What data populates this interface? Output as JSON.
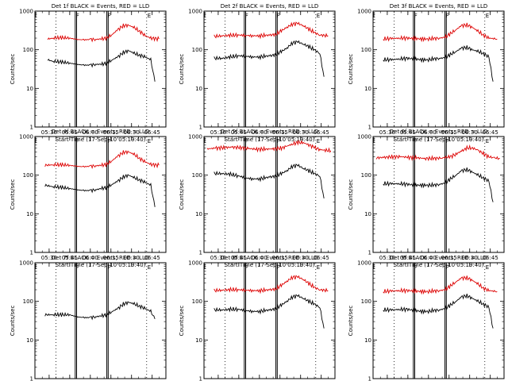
{
  "colors": {
    "events": "#000000",
    "lld": "#dd0000",
    "background": "#ffffff"
  },
  "chart_data": [
    {
      "type": "line",
      "title": "Det 1f BLACK = Events, RED = LLD",
      "xlabel": "Start Time (17-Sep-10 05:19:40)",
      "ylabel": "Counts/sec",
      "yscale": "log",
      "ylim": [
        1,
        1000
      ],
      "yticks": [
        "1",
        "10",
        "100",
        "1000"
      ],
      "xticks": [
        "05:30",
        "05:45",
        "06:00",
        "06:15",
        "06:30",
        "06:45"
      ],
      "markers": [
        "F",
        "F",
        "E"
      ],
      "grid": false,
      "series": [
        {
          "name": "Events",
          "color": "#000000",
          "x": [
            "05:29",
            "05:33",
            "05:39",
            "05:45",
            "05:50",
            "05:55",
            "06:00",
            "06:04",
            "06:08",
            "06:12",
            "06:16",
            "06:20",
            "06:24",
            "06:28",
            "06:32",
            "06:36",
            "06:40",
            "06:44",
            "06:47"
          ],
          "y": [
            55,
            50,
            48,
            45,
            42,
            40,
            40,
            42,
            42,
            45,
            55,
            65,
            85,
            95,
            80,
            72,
            65,
            55,
            15
          ]
        },
        {
          "name": "LLD",
          "color": "#dd0000",
          "x": [
            "05:29",
            "05:33",
            "05:39",
            "05:45",
            "05:50",
            "05:55",
            "06:00",
            "06:04",
            "06:08",
            "06:12",
            "06:16",
            "06:20",
            "06:24",
            "06:28",
            "06:32",
            "06:36",
            "06:40",
            "06:44",
            "06:50"
          ],
          "y": [
            190,
            200,
            205,
            200,
            185,
            180,
            185,
            185,
            190,
            200,
            250,
            330,
            420,
            430,
            370,
            300,
            230,
            200,
            190
          ]
        }
      ]
    },
    {
      "type": "line",
      "title": "Det 2f BLACK = Events, RED = LLD",
      "xlabel": "Start Time (17-Sep-10 05:19:40)",
      "ylabel": "Counts/sec",
      "yscale": "log",
      "ylim": [
        1,
        1000
      ],
      "yticks": [
        "1",
        "10",
        "100",
        "1000"
      ],
      "xticks": [
        "05:30",
        "05:45",
        "06:00",
        "06:15",
        "06:30",
        "06:45"
      ],
      "markers": [
        "F",
        "F",
        "E"
      ],
      "grid": false,
      "series": [
        {
          "name": "Events",
          "color": "#000000",
          "x": [
            "05:27",
            "05:33",
            "05:39",
            "05:45",
            "05:50",
            "05:55",
            "06:00",
            "06:04",
            "06:08",
            "06:12",
            "06:16",
            "06:20",
            "06:24",
            "06:28",
            "06:32",
            "06:36",
            "06:40",
            "06:44",
            "06:47"
          ],
          "y": [
            60,
            60,
            65,
            70,
            68,
            65,
            65,
            68,
            70,
            75,
            90,
            110,
            150,
            160,
            140,
            120,
            100,
            80,
            20
          ]
        },
        {
          "name": "LLD",
          "color": "#dd0000",
          "x": [
            "05:27",
            "05:33",
            "05:39",
            "05:45",
            "05:50",
            "05:55",
            "06:00",
            "06:04",
            "06:08",
            "06:12",
            "06:16",
            "06:20",
            "06:24",
            "06:28",
            "06:32",
            "06:36",
            "06:40",
            "06:44",
            "06:50"
          ],
          "y": [
            220,
            230,
            235,
            240,
            235,
            230,
            230,
            235,
            240,
            250,
            310,
            380,
            460,
            480,
            420,
            340,
            280,
            240,
            230
          ]
        }
      ]
    },
    {
      "type": "line",
      "title": "Det 3f BLACK = Events, RED = LLD",
      "xlabel": "Start Time (17-Sep-10 05:19:40)",
      "ylabel": "Counts/sec",
      "yscale": "log",
      "ylim": [
        1,
        1000
      ],
      "yticks": [
        "1",
        "10",
        "100",
        "1000"
      ],
      "xticks": [
        "05:30",
        "05:45",
        "06:00",
        "06:15",
        "06:30",
        "06:45"
      ],
      "markers": [
        "F",
        "F",
        "E"
      ],
      "grid": false,
      "series": [
        {
          "name": "Events",
          "color": "#000000",
          "x": [
            "05:27",
            "05:33",
            "05:39",
            "05:45",
            "05:50",
            "05:55",
            "06:00",
            "06:04",
            "06:08",
            "06:12",
            "06:16",
            "06:20",
            "06:24",
            "06:28",
            "06:32",
            "06:36",
            "06:40",
            "06:44",
            "06:47"
          ],
          "y": [
            55,
            55,
            58,
            60,
            58,
            55,
            55,
            58,
            60,
            62,
            75,
            90,
            110,
            115,
            100,
            90,
            80,
            65,
            15
          ]
        },
        {
          "name": "LLD",
          "color": "#dd0000",
          "x": [
            "05:27",
            "05:33",
            "05:39",
            "05:45",
            "05:50",
            "05:55",
            "06:00",
            "06:04",
            "06:08",
            "06:12",
            "06:16",
            "06:20",
            "06:24",
            "06:28",
            "06:32",
            "06:36",
            "06:40",
            "06:44",
            "06:50"
          ],
          "y": [
            190,
            195,
            200,
            200,
            195,
            190,
            190,
            195,
            200,
            210,
            260,
            330,
            420,
            440,
            380,
            300,
            240,
            200,
            190
          ]
        }
      ]
    },
    {
      "type": "line",
      "title": "Det 4f BLACK = Events, RED = LLD",
      "xlabel": "Start Time (17-Sep-10 05:19:40)",
      "ylabel": "Counts/sec",
      "yscale": "log",
      "ylim": [
        1,
        1000
      ],
      "yticks": [
        "1",
        "10",
        "100",
        "1000"
      ],
      "xticks": [
        "05:30",
        "05:45",
        "06:00",
        "06:15",
        "06:30",
        "06:45"
      ],
      "markers": [
        "F",
        "F",
        "E"
      ],
      "grid": false,
      "series": [
        {
          "name": "Events",
          "color": "#000000",
          "x": [
            "05:27",
            "05:33",
            "05:39",
            "05:45",
            "05:50",
            "05:55",
            "06:00",
            "06:04",
            "06:08",
            "06:12",
            "06:16",
            "06:20",
            "06:24",
            "06:28",
            "06:32",
            "06:36",
            "06:40",
            "06:44",
            "06:47"
          ],
          "y": [
            55,
            50,
            48,
            45,
            42,
            40,
            40,
            42,
            45,
            48,
            58,
            70,
            90,
            100,
            85,
            75,
            65,
            55,
            15
          ]
        },
        {
          "name": "LLD",
          "color": "#dd0000",
          "x": [
            "05:27",
            "05:33",
            "05:39",
            "05:45",
            "05:50",
            "05:55",
            "06:00",
            "06:04",
            "06:08",
            "06:12",
            "06:16",
            "06:20",
            "06:24",
            "06:28",
            "06:32",
            "06:36",
            "06:40",
            "06:44",
            "06:50"
          ],
          "y": [
            180,
            185,
            185,
            180,
            170,
            165,
            170,
            175,
            180,
            190,
            240,
            310,
            390,
            400,
            340,
            270,
            220,
            190,
            180
          ]
        }
      ]
    },
    {
      "type": "line",
      "title": "Det 5f BLACK = Events, RED = LLD",
      "xlabel": "Start Time (17-Sep-10 05:19:40)",
      "ylabel": "Counts/sec",
      "yscale": "log",
      "ylim": [
        1,
        1000
      ],
      "yticks": [
        "1",
        "10",
        "100",
        "1000"
      ],
      "xticks": [
        "05:30",
        "05:45",
        "06:00",
        "06:15",
        "06:30",
        "06:45"
      ],
      "markers": [
        "F",
        "F",
        "E"
      ],
      "grid": false,
      "series": [
        {
          "name": "Events",
          "color": "#000000",
          "x": [
            "05:27",
            "05:33",
            "05:39",
            "05:45",
            "05:50",
            "05:55",
            "06:00",
            "06:04",
            "06:08",
            "06:12",
            "06:16",
            "06:20",
            "06:24",
            "06:28",
            "06:32",
            "06:36",
            "06:40",
            "06:44",
            "06:47"
          ],
          "y": [
            110,
            110,
            105,
            95,
            85,
            80,
            80,
            85,
            90,
            95,
            110,
            130,
            170,
            180,
            150,
            130,
            110,
            95,
            25
          ]
        },
        {
          "name": "LLD",
          "color": "#dd0000",
          "x": [
            "05:22",
            "05:28",
            "05:34",
            "05:40",
            "05:46",
            "05:52",
            "05:58",
            "06:04",
            "06:10",
            "06:16",
            "06:20",
            "06:24",
            "06:28",
            "06:32",
            "06:36",
            "06:40",
            "06:44",
            "06:48",
            "06:52"
          ],
          "y": [
            480,
            500,
            520,
            530,
            520,
            490,
            470,
            470,
            480,
            500,
            560,
            640,
            700,
            690,
            610,
            520,
            460,
            440,
            430
          ]
        }
      ]
    },
    {
      "type": "line",
      "title": "Det 6f BLACK = Events, RED = LLD",
      "xlabel": "Start Time (17-Sep-10 05:19:40)",
      "ylabel": "Counts/sec",
      "yscale": "log",
      "ylim": [
        1,
        1000
      ],
      "yticks": [
        "1",
        "10",
        "100",
        "1000"
      ],
      "xticks": [
        "05:30",
        "05:45",
        "06:00",
        "06:15",
        "06:30",
        "06:45"
      ],
      "markers": [
        "F",
        "F",
        "E"
      ],
      "grid": false,
      "series": [
        {
          "name": "Events",
          "color": "#000000",
          "x": [
            "05:27",
            "05:33",
            "05:39",
            "05:45",
            "05:50",
            "05:55",
            "06:00",
            "06:04",
            "06:08",
            "06:12",
            "06:16",
            "06:20",
            "06:24",
            "06:28",
            "06:32",
            "06:36",
            "06:40",
            "06:44",
            "06:47"
          ],
          "y": [
            60,
            60,
            60,
            58,
            55,
            55,
            55,
            55,
            58,
            62,
            80,
            100,
            130,
            140,
            120,
            100,
            85,
            70,
            20
          ]
        },
        {
          "name": "LLD",
          "color": "#dd0000",
          "x": [
            "05:22",
            "05:28",
            "05:34",
            "05:40",
            "05:46",
            "05:52",
            "05:58",
            "06:04",
            "06:10",
            "06:16",
            "06:20",
            "06:24",
            "06:28",
            "06:32",
            "06:36",
            "06:40",
            "06:44",
            "06:48",
            "06:52"
          ],
          "y": [
            280,
            290,
            300,
            300,
            290,
            280,
            270,
            270,
            280,
            300,
            350,
            420,
            500,
            510,
            440,
            360,
            300,
            280,
            270
          ]
        }
      ]
    },
    {
      "type": "line",
      "title": "Det 7f BLACK = Events, RED = LLD",
      "xlabel": "Start Time (17-Sep-10 05:19:40)",
      "ylabel": "Counts/sec",
      "yscale": "log",
      "ylim": [
        1,
        1000
      ],
      "yticks": [
        "1",
        "10",
        "100",
        "1000"
      ],
      "xticks": [
        "05:30",
        "05:45",
        "06:00",
        "06:15",
        "06:30",
        "06:45"
      ],
      "markers": [
        "F",
        "F",
        "E"
      ],
      "grid": false,
      "series": [
        {
          "name": "Events",
          "color": "#000000",
          "x": [
            "05:27",
            "05:33",
            "05:39",
            "05:45",
            "05:50",
            "05:55",
            "06:00",
            "06:04",
            "06:08",
            "06:12",
            "06:16",
            "06:20",
            "06:24",
            "06:28",
            "06:32",
            "06:36",
            "06:40",
            "06:44",
            "06:47"
          ],
          "y": [
            45,
            45,
            45,
            45,
            40,
            38,
            38,
            40,
            42,
            45,
            55,
            65,
            85,
            95,
            85,
            75,
            65,
            55,
            35
          ]
        }
      ]
    },
    {
      "type": "line",
      "title": "Det 8f BLACK = Events, RED = LLD",
      "xlabel": "Start Time (17-Sep-10 05:19:40)",
      "ylabel": "Counts/sec",
      "yscale": "log",
      "ylim": [
        1,
        1000
      ],
      "yticks": [
        "1",
        "10",
        "100",
        "1000"
      ],
      "xticks": [
        "05:30",
        "05:45",
        "06:00",
        "06:15",
        "06:30",
        "06:45"
      ],
      "markers": [
        "F",
        "F",
        "E"
      ],
      "grid": false,
      "series": [
        {
          "name": "Events",
          "color": "#000000",
          "x": [
            "05:27",
            "05:33",
            "05:39",
            "05:45",
            "05:50",
            "05:55",
            "06:00",
            "06:04",
            "06:08",
            "06:12",
            "06:16",
            "06:20",
            "06:24",
            "06:28",
            "06:32",
            "06:36",
            "06:40",
            "06:44",
            "06:47"
          ],
          "y": [
            60,
            60,
            62,
            62,
            58,
            55,
            55,
            58,
            60,
            65,
            80,
            100,
            130,
            140,
            120,
            100,
            85,
            70,
            20
          ]
        },
        {
          "name": "LLD",
          "color": "#dd0000",
          "x": [
            "05:27",
            "05:33",
            "05:39",
            "05:45",
            "05:50",
            "05:55",
            "06:00",
            "06:04",
            "06:08",
            "06:12",
            "06:16",
            "06:20",
            "06:24",
            "06:28",
            "06:32",
            "06:36",
            "06:40",
            "06:44",
            "06:50"
          ],
          "y": [
            190,
            195,
            200,
            200,
            195,
            190,
            190,
            195,
            200,
            210,
            260,
            330,
            420,
            430,
            370,
            290,
            230,
            200,
            190
          ]
        }
      ]
    },
    {
      "type": "line",
      "title": "Det 9f BLACK = Events, RED = LLD",
      "xlabel": "Start Time (17-Sep-10 05:19:40)",
      "ylabel": "Counts/sec",
      "yscale": "log",
      "ylim": [
        1,
        1000
      ],
      "yticks": [
        "1",
        "10",
        "100",
        "1000"
      ],
      "xticks": [
        "05:30",
        "05:45",
        "06:00",
        "06:15",
        "06:30",
        "06:45"
      ],
      "markers": [
        "F",
        "F",
        "E"
      ],
      "grid": false,
      "series": [
        {
          "name": "Events",
          "color": "#000000",
          "x": [
            "05:27",
            "05:33",
            "05:39",
            "05:45",
            "05:50",
            "05:55",
            "06:00",
            "06:04",
            "06:08",
            "06:12",
            "06:16",
            "06:20",
            "06:24",
            "06:28",
            "06:32",
            "06:36",
            "06:40",
            "06:44",
            "06:47"
          ],
          "y": [
            60,
            60,
            62,
            62,
            58,
            55,
            55,
            58,
            60,
            65,
            80,
            100,
            130,
            140,
            120,
            100,
            85,
            70,
            20
          ]
        },
        {
          "name": "LLD",
          "color": "#dd0000",
          "x": [
            "05:27",
            "05:33",
            "05:39",
            "05:45",
            "05:50",
            "05:55",
            "06:00",
            "06:04",
            "06:08",
            "06:12",
            "06:16",
            "06:20",
            "06:24",
            "06:28",
            "06:32",
            "06:36",
            "06:40",
            "06:44",
            "06:50"
          ],
          "y": [
            180,
            185,
            190,
            190,
            185,
            180,
            180,
            185,
            190,
            200,
            250,
            320,
            400,
            410,
            350,
            280,
            220,
            190,
            180
          ]
        }
      ]
    }
  ]
}
